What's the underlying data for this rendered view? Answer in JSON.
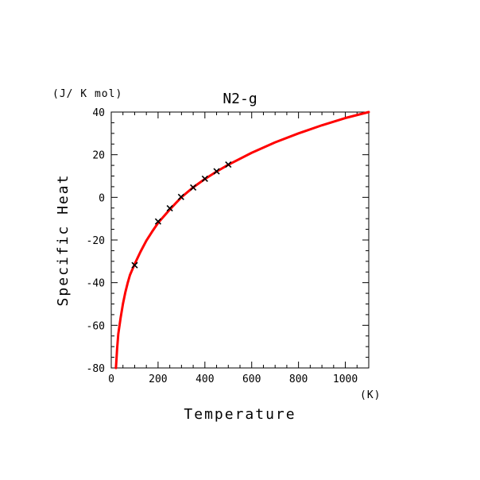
{
  "chart_data": {
    "type": "line",
    "title": "N2-g",
    "xlabel": "Temperature",
    "ylabel": "Specific Heat",
    "x_unit": "(K)",
    "y_unit": "(J/ K mol)",
    "xlim": [
      0,
      1100
    ],
    "ylim": [
      -80,
      40
    ],
    "x_ticks": [
      0,
      200,
      400,
      600,
      800,
      1000
    ],
    "y_ticks": [
      -80,
      -60,
      -40,
      -20,
      0,
      20,
      40
    ],
    "grid": false,
    "series": [
      {
        "kind": "curve",
        "color": "#ff0000",
        "x": [
          20,
          25,
          30,
          40,
          50,
          60,
          70,
          80,
          100,
          125,
          150,
          175,
          200,
          250,
          300,
          350,
          400,
          450,
          500,
          600,
          700,
          800,
          900,
          1000,
          1100
        ],
        "y": [
          -80,
          -71,
          -64.1,
          -56.5,
          -49.9,
          -44.6,
          -40.2,
          -36.4,
          -31.3,
          -25.5,
          -20.3,
          -16,
          -12,
          -5.7,
          0.1,
          4.7,
          8.6,
          12.1,
          15.3,
          20.9,
          25.8,
          30,
          33.8,
          37.2,
          40
        ]
      },
      {
        "kind": "markers",
        "marker": "x",
        "color": "#000000",
        "x": [
          100,
          200,
          250,
          298.15,
          350,
          400,
          450,
          500
        ],
        "y": [
          -31.8,
          -11.3,
          -5.1,
          0.2,
          4.6,
          8.7,
          12.2,
          15.4
        ]
      }
    ]
  }
}
